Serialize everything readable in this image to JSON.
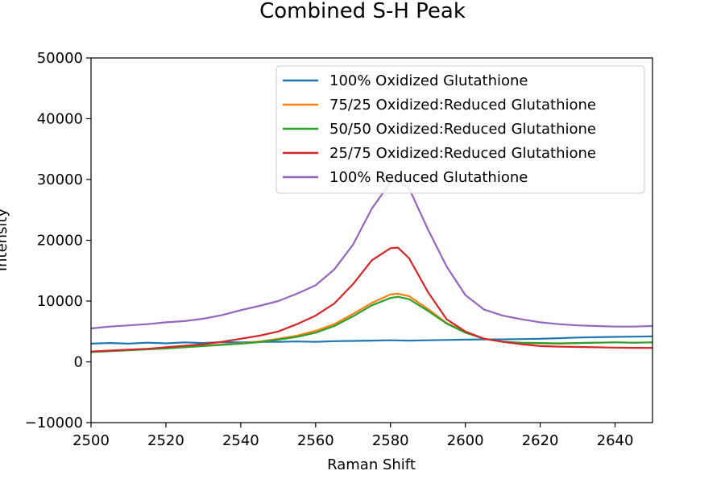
{
  "chart_data": {
    "type": "line",
    "title": "Combined S-H Peak",
    "xlabel": "Raman Shift",
    "ylabel": "Intensity",
    "xlim": [
      2500,
      2650
    ],
    "ylim": [
      -10000,
      50000
    ],
    "xticks": [
      2500,
      2520,
      2540,
      2560,
      2580,
      2600,
      2620,
      2640
    ],
    "yticks": [
      -10000,
      0,
      10000,
      20000,
      30000,
      40000,
      50000
    ],
    "grid": false,
    "legend_position": "top-right",
    "series": [
      {
        "name": "100% Oxidized Glutathione",
        "color": "#1f77b4",
        "x": [
          2500,
          2505,
          2510,
          2515,
          2520,
          2525,
          2530,
          2535,
          2540,
          2545,
          2550,
          2555,
          2560,
          2565,
          2570,
          2575,
          2580,
          2585,
          2590,
          2595,
          2600,
          2605,
          2610,
          2615,
          2620,
          2625,
          2630,
          2635,
          2640,
          2645,
          2650
        ],
        "y": [
          3000,
          3100,
          3000,
          3150,
          3050,
          3200,
          3100,
          3250,
          3200,
          3300,
          3300,
          3350,
          3300,
          3400,
          3450,
          3500,
          3550,
          3500,
          3550,
          3600,
          3650,
          3700,
          3700,
          3750,
          3800,
          3900,
          4000,
          4050,
          4100,
          4150,
          4200
        ]
      },
      {
        "name": "75/25 Oxidized:Reduced Glutathione",
        "color": "#ff7f0e",
        "x": [
          2500,
          2505,
          2510,
          2515,
          2520,
          2525,
          2530,
          2535,
          2540,
          2545,
          2550,
          2555,
          2560,
          2565,
          2570,
          2575,
          2580,
          2582,
          2585,
          2590,
          2595,
          2600,
          2605,
          2610,
          2615,
          2620,
          2625,
          2630,
          2635,
          2640,
          2645,
          2650
        ],
        "y": [
          1700,
          1800,
          1950,
          2100,
          2300,
          2450,
          2650,
          2850,
          3050,
          3350,
          3800,
          4300,
          5100,
          6200,
          7900,
          9700,
          11100,
          11200,
          10800,
          8700,
          6400,
          4900,
          3800,
          3300,
          3100,
          3050,
          3000,
          3100,
          3150,
          3200,
          3150,
          3200
        ]
      },
      {
        "name": "50/50 Oxidized:Reduced Glutathione",
        "color": "#2ca02c",
        "x": [
          2500,
          2505,
          2510,
          2515,
          2520,
          2525,
          2530,
          2535,
          2540,
          2545,
          2550,
          2555,
          2560,
          2565,
          2570,
          2575,
          2580,
          2582,
          2585,
          2590,
          2595,
          2600,
          2605,
          2610,
          2615,
          2620,
          2625,
          2630,
          2635,
          2640,
          2645,
          2650
        ],
        "y": [
          1600,
          1750,
          1900,
          2050,
          2200,
          2400,
          2600,
          2800,
          3000,
          3250,
          3650,
          4100,
          4800,
          5900,
          7500,
          9300,
          10500,
          10700,
          10300,
          8400,
          6300,
          4800,
          3800,
          3300,
          3150,
          3100,
          3050,
          3100,
          3150,
          3200,
          3150,
          3200
        ]
      },
      {
        "name": "25/75 Oxidized:Reduced Glutathione",
        "color": "#d62728",
        "x": [
          2500,
          2505,
          2510,
          2515,
          2520,
          2525,
          2530,
          2535,
          2540,
          2545,
          2550,
          2555,
          2560,
          2565,
          2570,
          2575,
          2580,
          2582,
          2585,
          2590,
          2595,
          2600,
          2605,
          2610,
          2615,
          2620,
          2625,
          2630,
          2635,
          2640,
          2645,
          2650
        ],
        "y": [
          1700,
          1850,
          2000,
          2150,
          2400,
          2650,
          2900,
          3300,
          3800,
          4300,
          5000,
          6200,
          7600,
          9600,
          12800,
          16700,
          18700,
          18800,
          17000,
          11500,
          7000,
          5000,
          3800,
          3300,
          2900,
          2600,
          2500,
          2450,
          2400,
          2350,
          2300,
          2300
        ]
      },
      {
        "name": "100% Reduced Glutathione",
        "color": "#9467bd",
        "x": [
          2500,
          2505,
          2510,
          2515,
          2520,
          2525,
          2530,
          2535,
          2540,
          2545,
          2550,
          2555,
          2560,
          2565,
          2570,
          2575,
          2580,
          2582,
          2585,
          2590,
          2595,
          2600,
          2605,
          2610,
          2615,
          2620,
          2625,
          2630,
          2635,
          2640,
          2645,
          2650
        ],
        "y": [
          5500,
          5800,
          6000,
          6200,
          6500,
          6700,
          7100,
          7700,
          8500,
          9200,
          10000,
          11200,
          12600,
          15200,
          19300,
          25200,
          29500,
          29800,
          28500,
          21800,
          15700,
          11000,
          8600,
          7600,
          7000,
          6500,
          6200,
          6000,
          5900,
          5800,
          5800,
          5900
        ]
      }
    ]
  }
}
